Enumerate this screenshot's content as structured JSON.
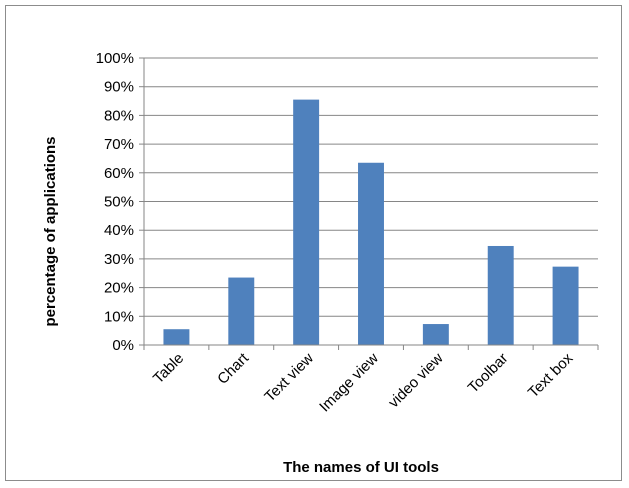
{
  "chart_data": {
    "type": "bar",
    "title": "",
    "xlabel": "The names of UI tools",
    "ylabel": "percentage of applications",
    "categories": [
      "Table",
      "Chart",
      "Text view",
      "Image view",
      "video view",
      "Toolbar",
      "Text box"
    ],
    "values": [
      5.5,
      23.5,
      85.5,
      63.5,
      7.3,
      34.5,
      27.3
    ],
    "ylim": [
      0,
      100
    ],
    "ytick_step": 10,
    "ytick_labels": [
      "0%",
      "10%",
      "20%",
      "30%",
      "40%",
      "50%",
      "60%",
      "70%",
      "80%",
      "90%",
      "100%"
    ],
    "grid": true,
    "legend": "none",
    "bar_color": "#4f81bd",
    "grid_color": "#868686"
  }
}
